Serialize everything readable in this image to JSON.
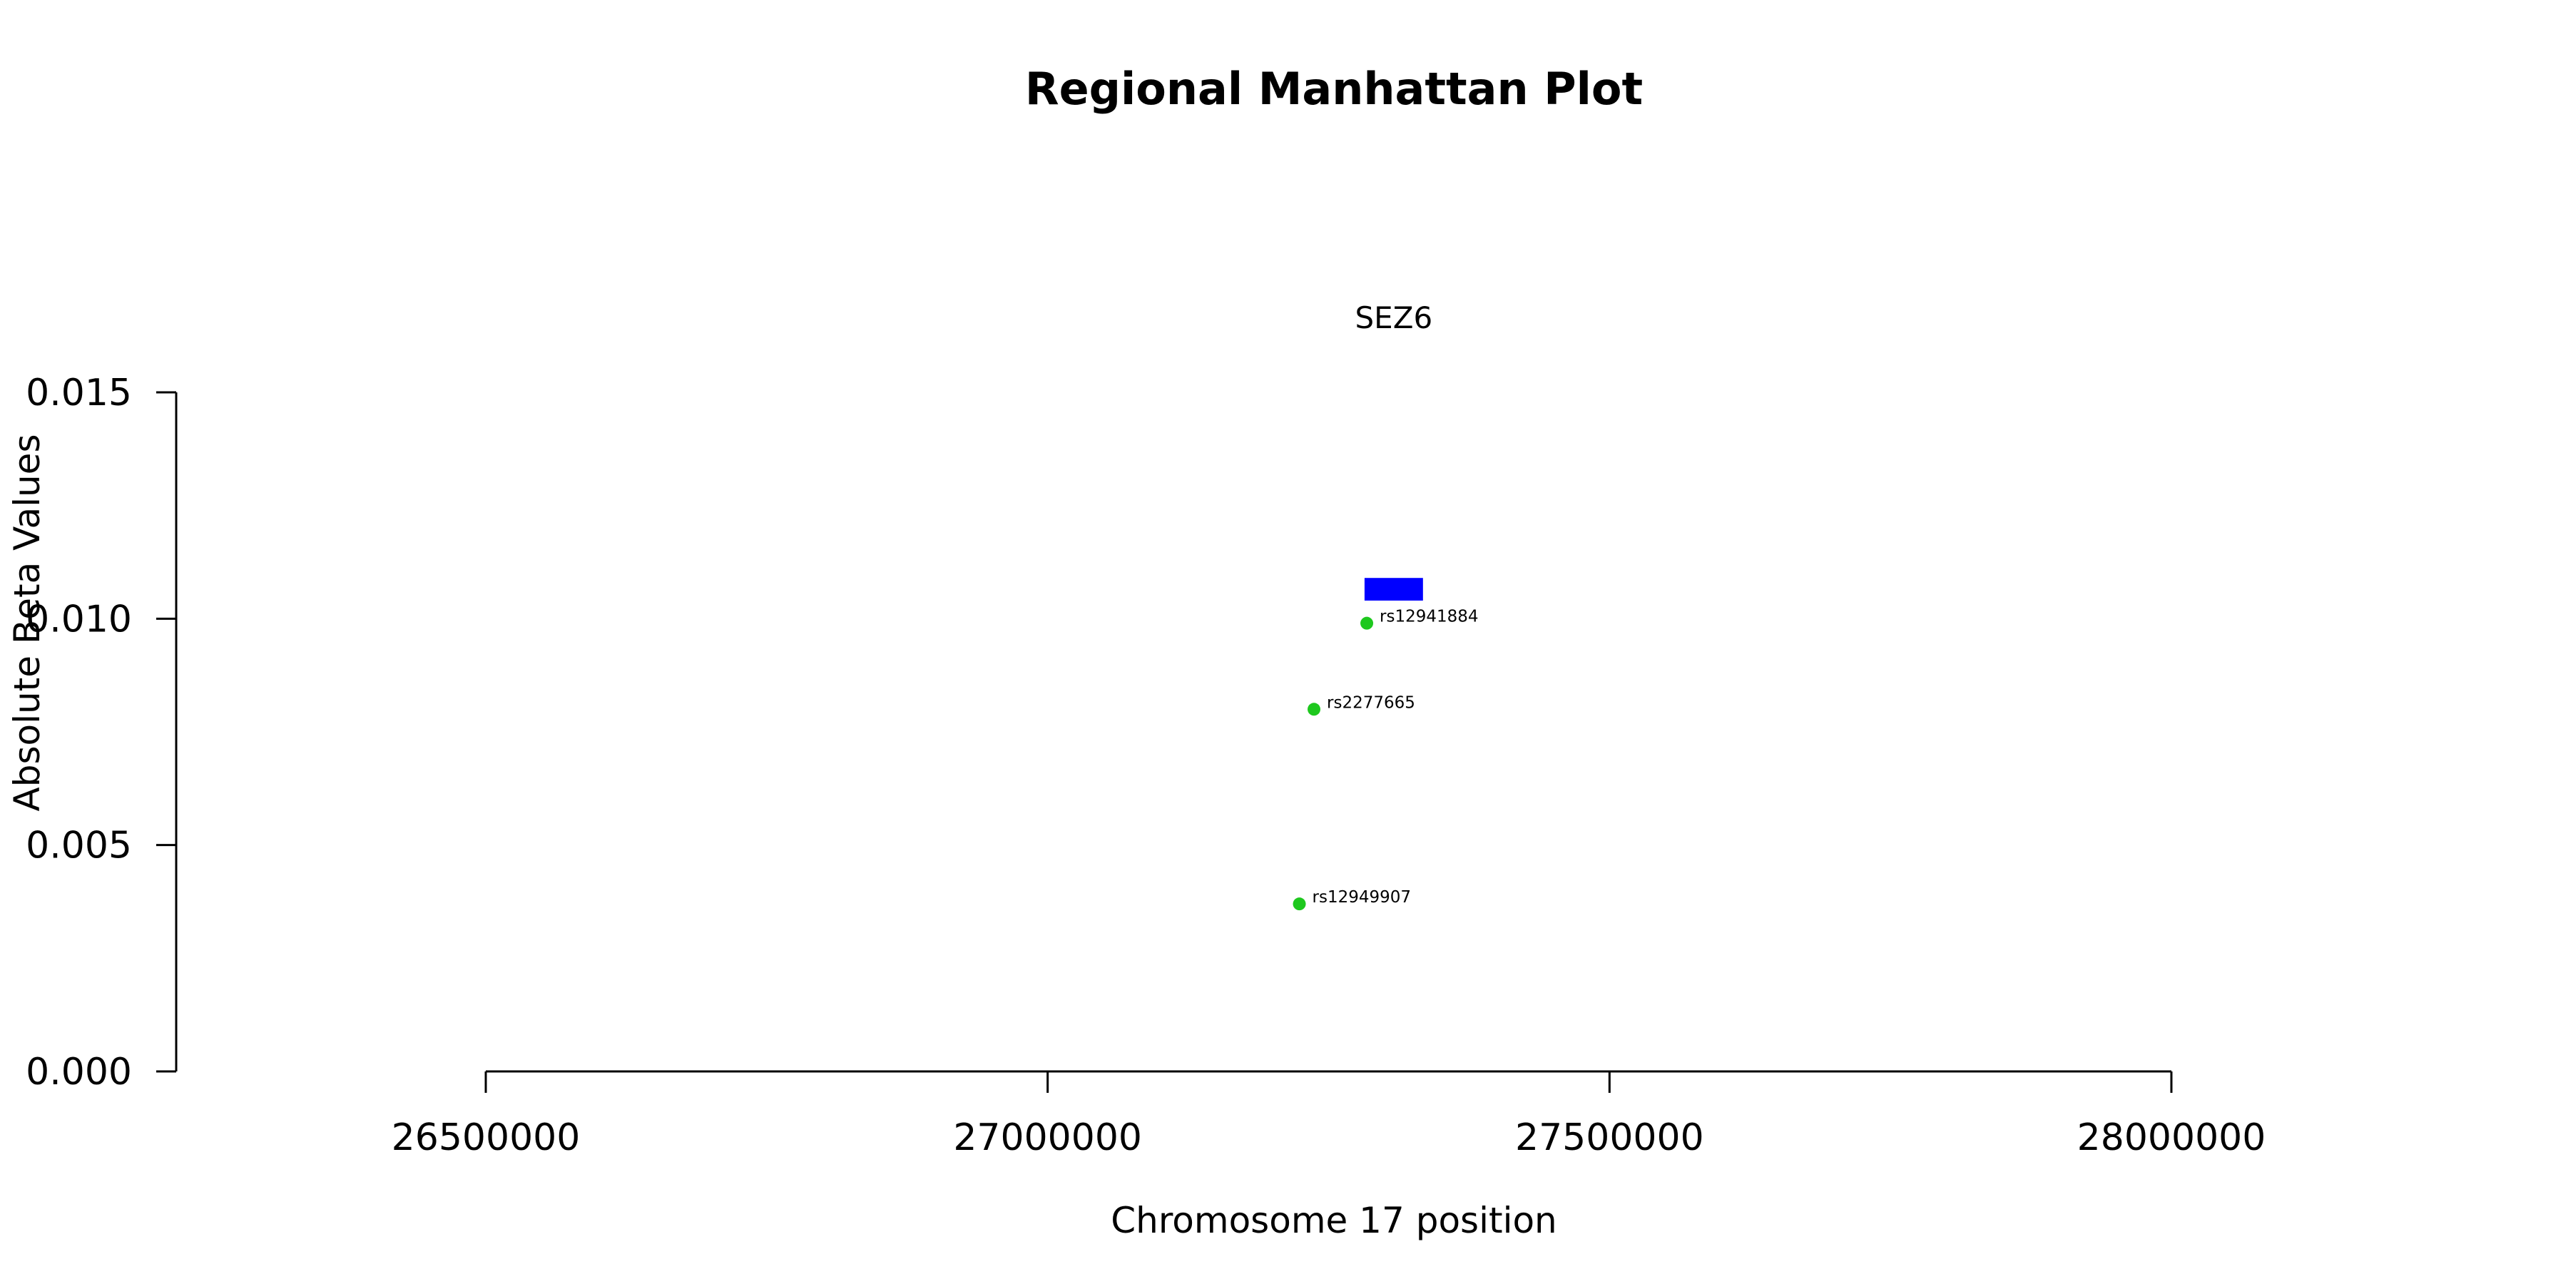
{
  "chart_data": {
    "type": "scatter",
    "title": "Regional Manhattan Plot",
    "xlabel": "Chromosome 17 position",
    "ylabel": "Absolute Beta Values",
    "xlim": [
      26225000,
      28000000
    ],
    "ylim": [
      0,
      0.015
    ],
    "x_ticks": [
      {
        "value": 26500000,
        "label": "26500000"
      },
      {
        "value": 27000000,
        "label": "27000000"
      },
      {
        "value": 27500000,
        "label": "27500000"
      },
      {
        "value": 28000000,
        "label": "28000000"
      }
    ],
    "y_ticks": [
      {
        "value": 0.0,
        "label": "0.000"
      },
      {
        "value": 0.005,
        "label": "0.005"
      },
      {
        "value": 0.01,
        "label": "0.010"
      },
      {
        "value": 0.015,
        "label": "0.015"
      }
    ],
    "gene": {
      "name": "SEZ6",
      "start": 27282000,
      "end": 27334000,
      "y_low": 0.0104,
      "y_high": 0.0109,
      "color": "#0000ff"
    },
    "points": [
      {
        "label": "rs12941884",
        "x": 27284000,
        "y": 0.0099
      },
      {
        "label": "rs2277665",
        "x": 27237000,
        "y": 0.008
      },
      {
        "label": "rs12949907",
        "x": 27224000,
        "y": 0.0037
      }
    ],
    "point_color": "#1ec81e",
    "grid": false
  }
}
